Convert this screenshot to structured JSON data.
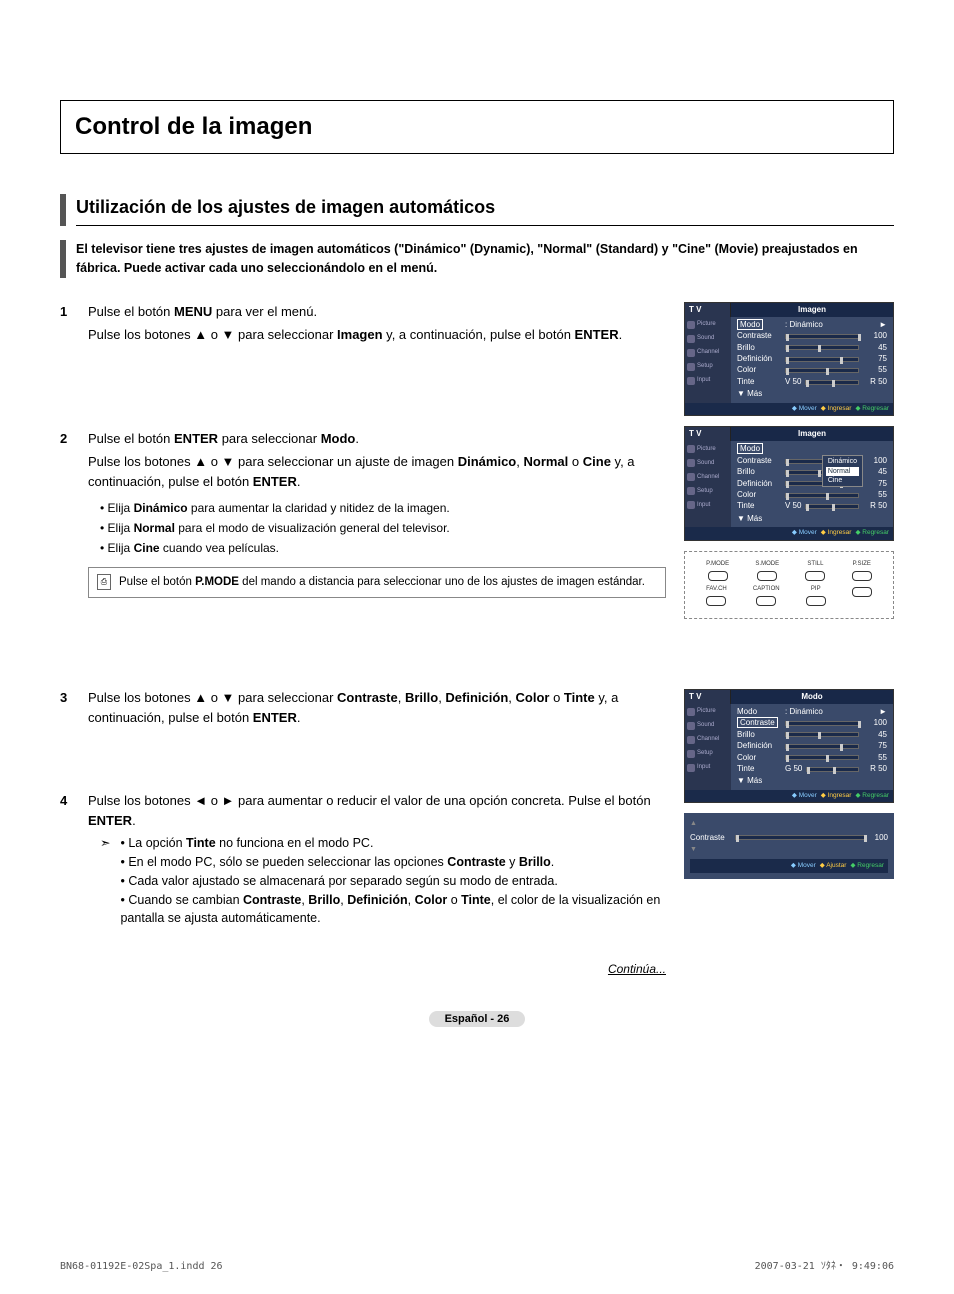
{
  "title": "Control de la imagen",
  "section": "Utilización de los ajustes de imagen automáticos",
  "intro": "El televisor tiene tres ajustes de imagen automáticos (\"Dinámico\" (Dynamic), \"Normal\" (Standard) y \"Cine\" (Movie) preajustados en fábrica. Puede activar cada uno seleccionándolo en el menú.",
  "steps": {
    "s1": {
      "num": "1",
      "l1_a": "Pulse el botón ",
      "l1_b": "MENU",
      "l1_c": " para ver el menú.",
      "l2_a": "Pulse los botones ▲ o ▼ para seleccionar ",
      "l2_b": "Imagen",
      "l2_c": " y, a continuación, pulse el botón ",
      "l2_d": "ENTER",
      "l2_e": "."
    },
    "s2": {
      "num": "2",
      "l1_a": "Pulse el botón ",
      "l1_b": "ENTER",
      "l1_c": " para seleccionar ",
      "l1_d": "Modo",
      "l1_e": ".",
      "l2_a": "Pulse los botones ▲ o ▼ para seleccionar un ajuste de imagen ",
      "l2_b": "Dinámico",
      "l2_c": ", ",
      "l2_d": "Normal",
      "l2_e": " o ",
      "l2_f": "Cine",
      "l2_g": " y, a continuación, pulse el botón ",
      "l2_h": "ENTER",
      "l2_i": ".",
      "b1_a": "Elija ",
      "b1_b": "Dinámico",
      "b1_c": " para aumentar la claridad y nitidez de la imagen.",
      "b2_a": "Elija ",
      "b2_b": "Normal",
      "b2_c": " para el modo de visualización general del televisor.",
      "b3_a": "Elija ",
      "b3_b": "Cine",
      "b3_c": " cuando vea películas.",
      "note_a": "Pulse el botón ",
      "note_b": "P.MODE",
      "note_c": " del mando a distancia para seleccionar uno de los ajustes de imagen estándar."
    },
    "s3": {
      "num": "3",
      "l1_a": "Pulse los botones ▲ o ▼ para seleccionar ",
      "l1_b": "Contraste",
      "l1_c": ", ",
      "l1_d": "Brillo",
      "l1_e": ", ",
      "l1_f": "Definición",
      "l1_g": ", ",
      "l1_h": "Color",
      "l1_i": " o ",
      "l1_j": "Tinte",
      "l1_k": " y, a continuación, pulse el botón ",
      "l1_l": "ENTER",
      "l1_m": "."
    },
    "s4": {
      "num": "4",
      "l1_a": "Pulse los botones ◄ o ► para aumentar o reducir el valor de una opción concreta. Pulse el botón ",
      "l1_b": "ENTER",
      "l1_c": ".",
      "a1_a": "La opción ",
      "a1_b": "Tinte",
      "a1_c": " no funciona en el modo PC.",
      "a2_a": "En el modo PC, sólo se pueden seleccionar las opciones ",
      "a2_b": "Contraste",
      "a2_c": " y ",
      "a2_d": "Brillo",
      "a2_e": ".",
      "a3": "Cada valor ajustado se almacenará por separado según su modo de entrada.",
      "a4_a": "Cuando se cambian ",
      "a4_b": "Contraste",
      "a4_c": ", ",
      "a4_d": "Brillo",
      "a4_e": ", ",
      "a4_f": "Definición",
      "a4_g": ", ",
      "a4_h": "Color",
      "a4_i": " o ",
      "a4_j": "Tinte",
      "a4_k": ", el color de la visualización en pantalla se ajusta automáticamente."
    }
  },
  "osd": {
    "tv_label": "T V",
    "side": [
      "Picture",
      "Sound",
      "Channel",
      "Setup",
      "Input"
    ],
    "screen1": {
      "title": "Imagen",
      "rows": [
        {
          "label": "Modo",
          "text": ": Dinámico",
          "arrow": "►",
          "selected": true
        },
        {
          "label": "Contraste",
          "val": "100",
          "bar": 100
        },
        {
          "label": "Brillo",
          "val": "45",
          "bar": 45
        },
        {
          "label": "Definición",
          "val": "75",
          "bar": 75
        },
        {
          "label": "Color",
          "val": "55",
          "bar": 55
        },
        {
          "label": "Tinte",
          "left": "V 50",
          "val": "R 50",
          "bar": 50
        }
      ],
      "mas": "▼ Más",
      "footer": [
        "Mover",
        "Ingresar",
        "Regresar"
      ]
    },
    "screen2": {
      "title": "Imagen",
      "dropdown": [
        "Dinámico",
        "Normal",
        "Cine"
      ],
      "dropdown_sel": 1,
      "rows": [
        {
          "label": "Modo",
          "text": "",
          "selected": true
        },
        {
          "label": "Contraste",
          "val": "100",
          "bar": 100
        },
        {
          "label": "Brillo",
          "val": "45",
          "bar": 45
        },
        {
          "label": "Definición",
          "val": "75",
          "bar": 75
        },
        {
          "label": "Color",
          "val": "55",
          "bar": 55
        },
        {
          "label": "Tinte",
          "left": "V 50",
          "val": "R 50",
          "bar": 50
        }
      ],
      "mas": "▼ Más",
      "footer": [
        "Mover",
        "Ingresar",
        "Regresar"
      ]
    },
    "screen3": {
      "title": "Modo",
      "rows": [
        {
          "label": "Modo",
          "text": ": Dinámico",
          "arrow": "►"
        },
        {
          "label": "Contraste",
          "val": "100",
          "bar": 100,
          "selected": true
        },
        {
          "label": "Brillo",
          "val": "45",
          "bar": 45
        },
        {
          "label": "Definición",
          "val": "75",
          "bar": 75
        },
        {
          "label": "Color",
          "val": "55",
          "bar": 55
        },
        {
          "label": "Tinte",
          "left": "G 50",
          "val": "R 50",
          "bar": 50
        }
      ],
      "mas": "▼ Más",
      "footer": [
        "Mover",
        "Ingresar",
        "Regresar"
      ]
    },
    "slider": {
      "label": "Contraste",
      "val": "100",
      "bar": 100,
      "footer": [
        "Mover",
        "Ajustar",
        "Regresar"
      ]
    }
  },
  "remote": {
    "row1": [
      "P.MODE",
      "S.MODE",
      "STILL",
      "P.SIZE"
    ],
    "row2": [
      "FAV.CH",
      "CAPTION",
      "PIP",
      ""
    ]
  },
  "continua": "Continúa...",
  "page_label": "Español - 26",
  "print": {
    "left": "BN68-01192E-02Spa_1.indd   26",
    "right": "2007-03-21   ｿﾀﾈ・ 9:49:06"
  },
  "colors": {
    "osd_bg": "#3a4a6a",
    "osd_header": "#182848",
    "osd_side": "#2a3550",
    "osd_footer_accent": "#e84"
  }
}
